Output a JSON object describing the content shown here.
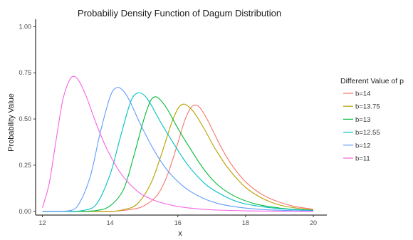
{
  "chart_data": {
    "type": "line",
    "title": "Probabiliy Density Function of Dagum Distribution",
    "xlabel": "x",
    "ylabel": "Probability Value",
    "xlim": [
      11.8,
      20.4
    ],
    "ylim": [
      -0.02,
      1.04
    ],
    "x_ticks": [
      12,
      14,
      16,
      18,
      20
    ],
    "y_ticks": [
      0.0,
      0.25,
      0.5,
      0.75,
      1.0
    ],
    "x_tick_labels": [
      "12",
      "14",
      "16",
      "18",
      "20"
    ],
    "y_tick_labels": [
      "0.00",
      "0.25",
      "0.50",
      "0.75",
      "1.00"
    ],
    "grid": false,
    "legend_position": "right",
    "legend_title": "Different Value of p",
    "series": [
      {
        "name": "b=14",
        "color": "#f8766d",
        "x": [
          12,
          13,
          14,
          14.6,
          15.0,
          15.4,
          15.7,
          16.0,
          16.2,
          16.4,
          16.6,
          16.8,
          17.0,
          17.3,
          17.6,
          18.0,
          18.5,
          19.0,
          19.5,
          20.0
        ],
        "y": [
          0.0,
          0.0,
          0.0,
          0.01,
          0.03,
          0.09,
          0.2,
          0.37,
          0.49,
          0.565,
          0.57,
          0.52,
          0.45,
          0.34,
          0.25,
          0.16,
          0.09,
          0.05,
          0.025,
          0.012
        ]
      },
      {
        "name": "b=13.75",
        "color": "#b79f00",
        "x": [
          12,
          13,
          14,
          14.4,
          14.8,
          15.2,
          15.5,
          15.8,
          16.0,
          16.15,
          16.3,
          16.5,
          16.8,
          17.1,
          17.5,
          18.0,
          18.5,
          19.0,
          19.5,
          20.0
        ],
        "y": [
          0.0,
          0.0,
          0.0,
          0.01,
          0.04,
          0.15,
          0.3,
          0.47,
          0.555,
          0.58,
          0.57,
          0.53,
          0.44,
          0.34,
          0.23,
          0.13,
          0.07,
          0.035,
          0.018,
          0.008
        ]
      },
      {
        "name": "b=13",
        "color": "#00ba38",
        "x": [
          12,
          13,
          13.6,
          14.0,
          14.4,
          14.7,
          15.0,
          15.2,
          15.35,
          15.5,
          15.7,
          16.0,
          16.4,
          16.8,
          17.2,
          17.7,
          18.3,
          19.0,
          19.5,
          20.0
        ],
        "y": [
          0.0,
          0.0,
          0.005,
          0.03,
          0.12,
          0.3,
          0.5,
          0.6,
          0.62,
          0.6,
          0.55,
          0.45,
          0.33,
          0.22,
          0.14,
          0.08,
          0.04,
          0.018,
          0.01,
          0.005
        ]
      },
      {
        "name": "b=12.55",
        "color": "#00bfc4",
        "x": [
          12,
          12.8,
          13.2,
          13.6,
          14.0,
          14.3,
          14.6,
          14.8,
          15.0,
          15.2,
          15.5,
          15.9,
          16.3,
          16.8,
          17.3,
          17.8,
          18.5,
          19.2,
          20.0
        ],
        "y": [
          0.0,
          0.0,
          0.005,
          0.04,
          0.2,
          0.4,
          0.59,
          0.64,
          0.63,
          0.58,
          0.48,
          0.36,
          0.25,
          0.15,
          0.09,
          0.05,
          0.025,
          0.012,
          0.005
        ]
      },
      {
        "name": "b=12",
        "color": "#619cff",
        "x": [
          12,
          12.6,
          13.0,
          13.4,
          13.7,
          14.0,
          14.2,
          14.4,
          14.6,
          14.9,
          15.3,
          15.7,
          16.2,
          16.7,
          17.2,
          17.8,
          18.5,
          19.2,
          20.0
        ],
        "y": [
          0.0,
          0.0,
          0.02,
          0.18,
          0.42,
          0.62,
          0.67,
          0.65,
          0.59,
          0.47,
          0.33,
          0.22,
          0.13,
          0.075,
          0.042,
          0.022,
          0.01,
          0.005,
          0.002
        ]
      },
      {
        "name": "b=11",
        "color": "#f564e3",
        "x": [
          12,
          12.2,
          12.4,
          12.6,
          12.8,
          12.95,
          13.1,
          13.3,
          13.6,
          13.9,
          14.3,
          14.8,
          15.3,
          15.9,
          16.5,
          17.2,
          18.0,
          19.0,
          20.0
        ],
        "y": [
          0.02,
          0.15,
          0.38,
          0.6,
          0.71,
          0.73,
          0.7,
          0.62,
          0.47,
          0.34,
          0.21,
          0.11,
          0.06,
          0.03,
          0.015,
          0.007,
          0.003,
          0.001,
          0.0
        ]
      }
    ]
  }
}
